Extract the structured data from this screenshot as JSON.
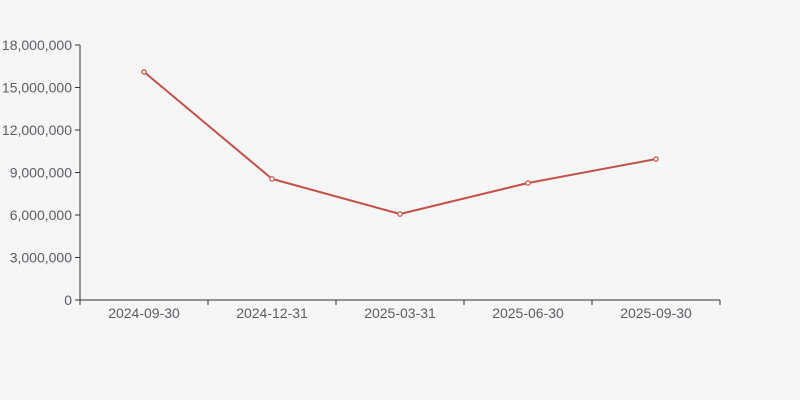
{
  "background": "#f6f6f6",
  "chart_data": {
    "type": "line",
    "title": "",
    "xlabel": "",
    "ylabel": "",
    "categories": [
      "2024-09-30",
      "2024-12-31",
      "2025-03-31",
      "2025-06-30",
      "2025-09-30"
    ],
    "values": [
      16100000,
      8550000,
      6070000,
      8260000,
      9950000
    ],
    "ylim": [
      0,
      18000000
    ],
    "y_tick_interval": 3000000,
    "y_tick_labels": [
      "0",
      "3,000,000",
      "6,000,000",
      "9,000,000",
      "12,000,000",
      "15,000,000",
      "18,000,000"
    ],
    "grid": false,
    "legend": false,
    "marker": "open-circle",
    "line_color": "#c5514b",
    "axis_color": "#333333",
    "label_color": "#5a5d64"
  }
}
